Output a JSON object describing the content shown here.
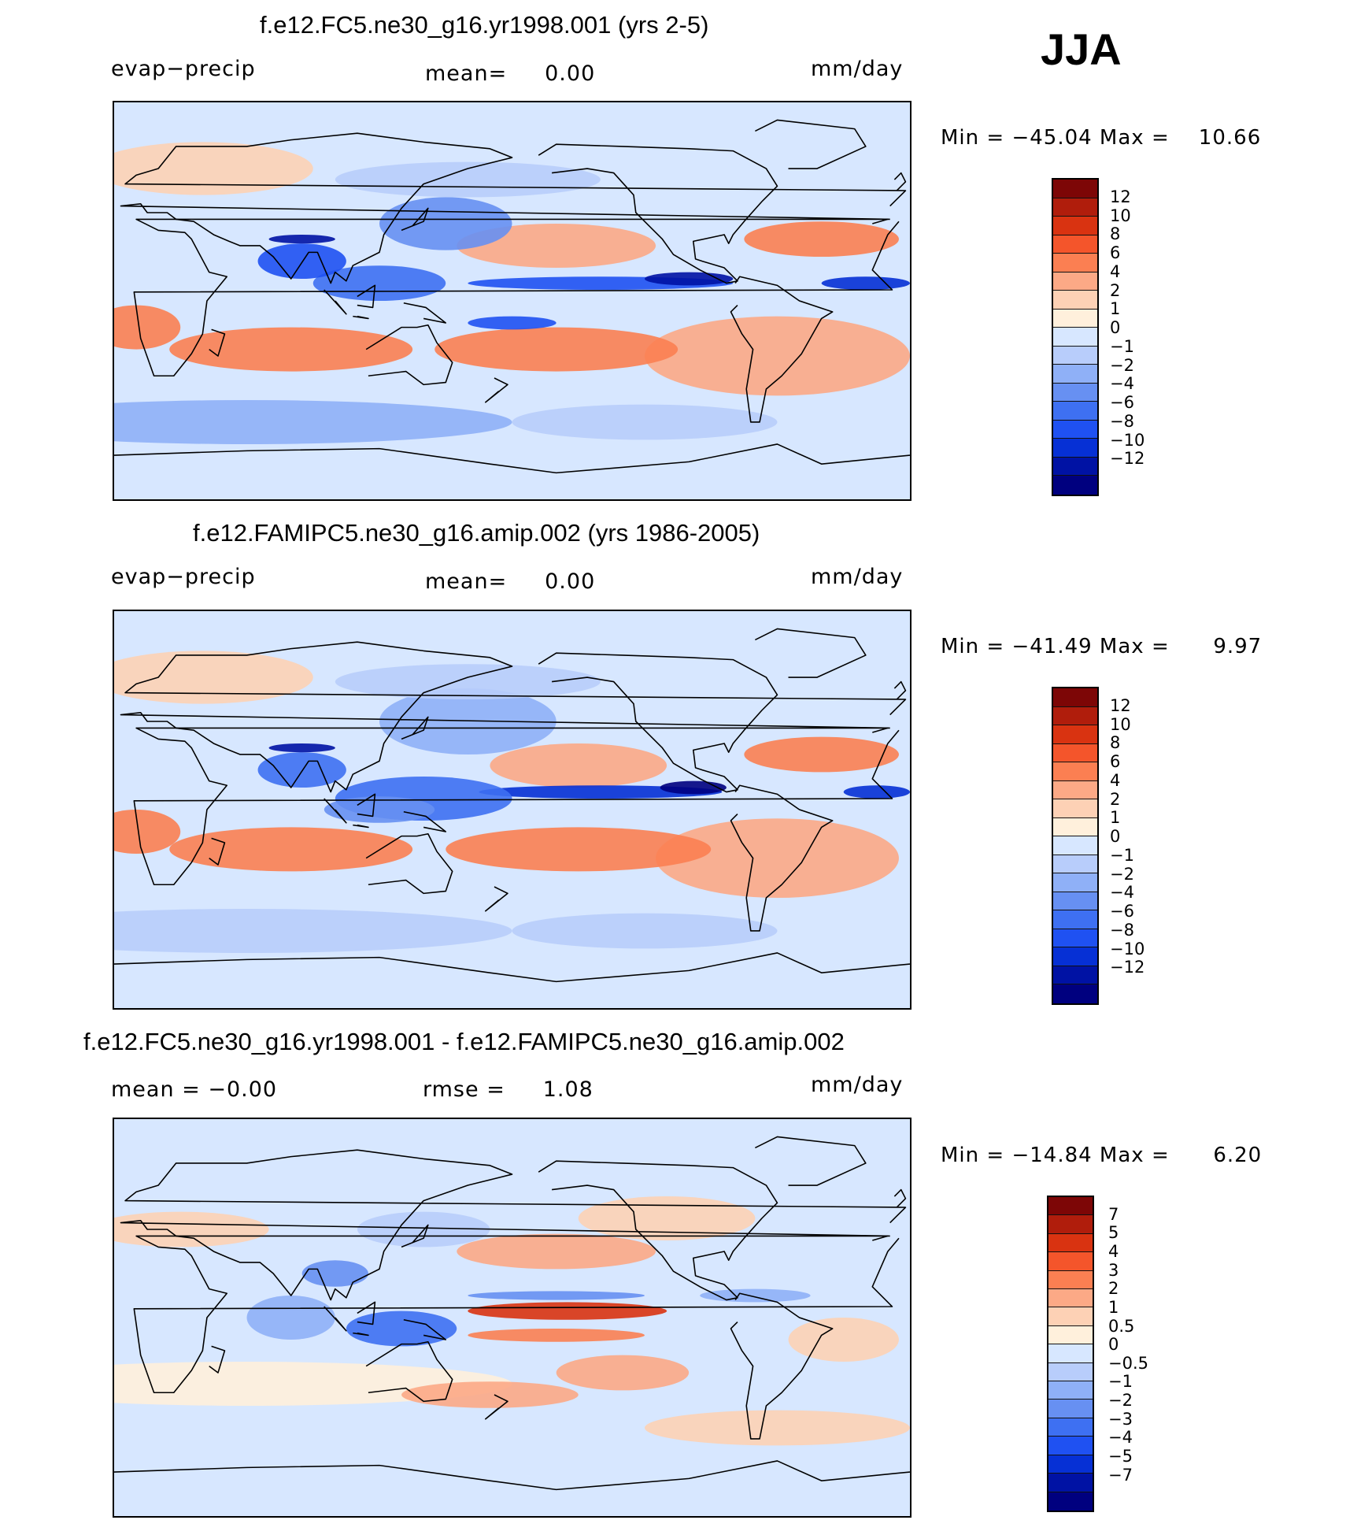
{
  "season": "JJA",
  "units": "mm/day",
  "colors": {
    "main_scale": [
      "#00007f",
      "#0012a4",
      "#0630d5",
      "#1f51f2",
      "#3e70f2",
      "#6790f2",
      "#8fb0f7",
      "#b8cdfb",
      "#d7e7ff",
      "#fff0dc",
      "#fdd1b5",
      "#fca986",
      "#fb7f52",
      "#f4552b",
      "#d93311",
      "#b01d0c",
      "#7d0606"
    ],
    "diff_scale": [
      "#00007f",
      "#0012a4",
      "#0630d5",
      "#1f51f2",
      "#3e70f2",
      "#6790f2",
      "#8fb0f7",
      "#b8cdfb",
      "#d7e7ff",
      "#fff0dc",
      "#fdd1b5",
      "#fca986",
      "#fb7f52",
      "#f4552b",
      "#d93311",
      "#b01d0c",
      "#7d0606"
    ],
    "ocean_bg": "#d7e7ff"
  },
  "chart_data": [
    {
      "type": "heatmap",
      "title": "f.e12.FC5.ne30_g16.yr1998.001 (yrs 2-5)",
      "variable": "evap−precip",
      "left_stat_label": "",
      "center_stat_label": "mean=",
      "center_stat_value": "0.00",
      "units": "mm/day",
      "min_label": "Min  =  −45.04  Max  =",
      "max_value": "10.66",
      "min": -45.04,
      "max": 10.66,
      "colorbar_levels": [
        "12",
        "10",
        "8",
        "6",
        "4",
        "2",
        "1",
        "0",
        "−1",
        "−2",
        "−4",
        "−6",
        "−8",
        "−10",
        "−12"
      ],
      "map_extent": {
        "lon": [
          0,
          360
        ],
        "lat": [
          -90,
          90
        ]
      }
    },
    {
      "type": "heatmap",
      "title": "f.e12.FAMIPC5.ne30_g16.amip.002 (yrs 1986-2005)",
      "variable": "evap−precip",
      "center_stat_label": "mean=",
      "center_stat_value": "0.00",
      "units": "mm/day",
      "min_label": "Min  =  −41.49  Max  =",
      "max_value": "9.97",
      "min": -41.49,
      "max": 9.97,
      "colorbar_levels": [
        "12",
        "10",
        "8",
        "6",
        "4",
        "2",
        "1",
        "0",
        "−1",
        "−2",
        "−4",
        "−6",
        "−8",
        "−10",
        "−12"
      ],
      "map_extent": {
        "lon": [
          0,
          360
        ],
        "lat": [
          -90,
          90
        ]
      }
    },
    {
      "type": "heatmap",
      "title": "f.e12.FC5.ne30_g16.yr1998.001 - f.e12.FAMIPC5.ne30_g16.amip.002",
      "left_stat": "mean  =    −0.00",
      "center_stat_label": "rmse  =",
      "center_stat_value": "1.08",
      "units": "mm/day",
      "min_label": "Min  =  −14.84  Max  =",
      "max_value": "6.20",
      "min": -14.84,
      "max": 6.2,
      "colorbar_levels": [
        "7",
        "5",
        "4",
        "3",
        "2",
        "1",
        "0.5",
        "0",
        "−0.5",
        "−1",
        "−2",
        "−3",
        "−4",
        "−5",
        "−7"
      ],
      "map_extent": {
        "lon": [
          0,
          360
        ],
        "lat": [
          -90,
          90
        ]
      }
    }
  ]
}
